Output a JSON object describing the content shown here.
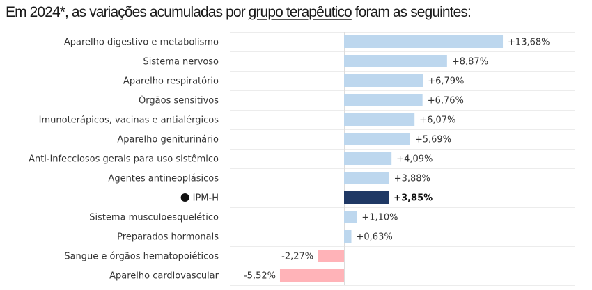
{
  "title": {
    "prefix": "Em 2024*, as variações acumuladas por ",
    "link": "grupo terapêutico",
    "suffix": " foram as seguintes:"
  },
  "colors": {
    "positive": "#bdd7ee",
    "negative": "#ffb3b8",
    "highlight": "#1f3864",
    "bullet": "#111111"
  },
  "chart_data": {
    "type": "bar",
    "orientation": "horizontal",
    "title": "Em 2024*, as variações acumuladas por grupo terapêutico foram as seguintes:",
    "xlabel": "",
    "ylabel": "",
    "unit": "%",
    "xlim": [
      -5.52,
      13.68
    ],
    "grid": true,
    "categories": [
      "Aparelho digestivo e metabolismo",
      "Sistema nervoso",
      "Aparelho respiratório",
      "Órgãos sensitivos",
      "Imunoterápicos, vacinas e antialérgicos",
      "Aparelho geniturinário",
      "Anti-infecciosos gerais para uso sistêmico",
      "Agentes antineoplásicos",
      "IPM-H",
      "Sistema musculoesquelético",
      "Preparados hormonais",
      "Sangue e órgãos hematopoiéticos",
      "Aparelho cardiovascular"
    ],
    "values": [
      13.68,
      8.87,
      6.79,
      6.76,
      6.07,
      5.69,
      4.09,
      3.88,
      3.85,
      1.1,
      0.63,
      -2.27,
      -5.52
    ],
    "labels": [
      "+13,68%",
      "+8,87%",
      "+6,79%",
      "+6,76%",
      "+6,07%",
      "+5,69%",
      "+4,09%",
      "+3,88%",
      "+3,85%",
      "+1,10%",
      "+0,63%",
      "-2,27%",
      "-5,52%"
    ],
    "highlight": "IPM-H"
  }
}
